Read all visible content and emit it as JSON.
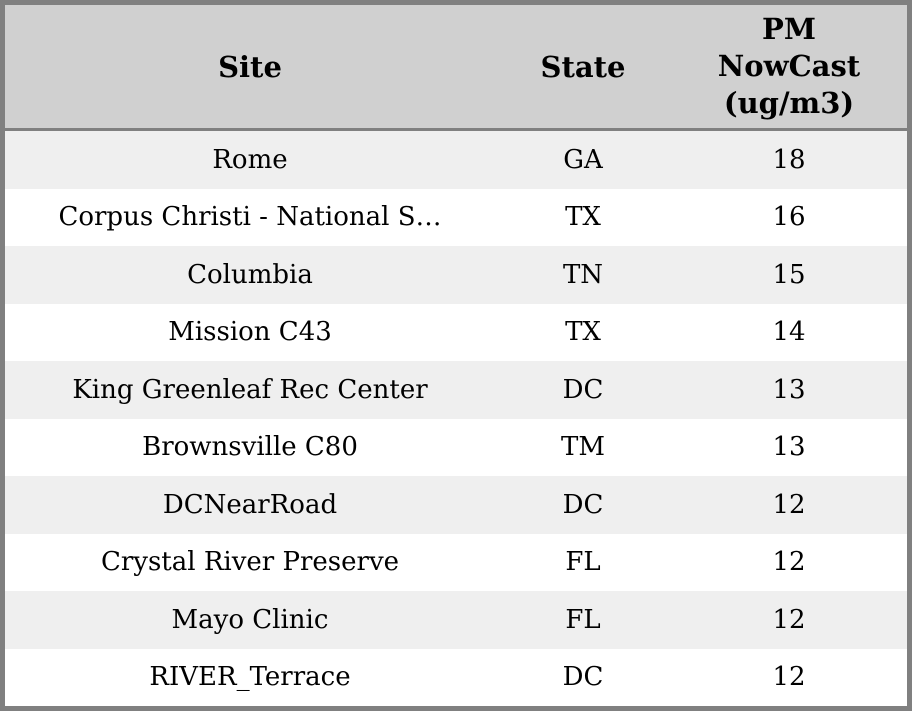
{
  "chart_data": {
    "type": "table",
    "columns": [
      "Site",
      "State",
      "PM NowCast (ug/m3)"
    ],
    "rows": [
      [
        "Rome",
        "GA",
        18
      ],
      [
        "Corpus Christi - National S…",
        "TX",
        16
      ],
      [
        "Columbia",
        "TN",
        15
      ],
      [
        "Mission C43",
        "TX",
        14
      ],
      [
        "King Greenleaf Rec Center",
        "DC",
        13
      ],
      [
        "Brownsville C80",
        "TM",
        13
      ],
      [
        "DCNearRoad",
        "DC",
        12
      ],
      [
        "Crystal River Preserve",
        "FL",
        12
      ],
      [
        "Mayo Clinic",
        "FL",
        12
      ],
      [
        "RIVER_Terrace",
        "DC",
        12
      ]
    ],
    "layout": {
      "grid": "off",
      "row_striping": true,
      "alignment": "center"
    }
  },
  "header": {
    "site": "Site",
    "state": "State",
    "pm_multiline": "PM\nNowCast\n(ug/m3)"
  },
  "colors": {
    "border": "#808080",
    "header_bg": "#d0d0d0",
    "row_alt_bg": "#efefef",
    "row_bg": "#ffffff",
    "text": "#000000"
  }
}
